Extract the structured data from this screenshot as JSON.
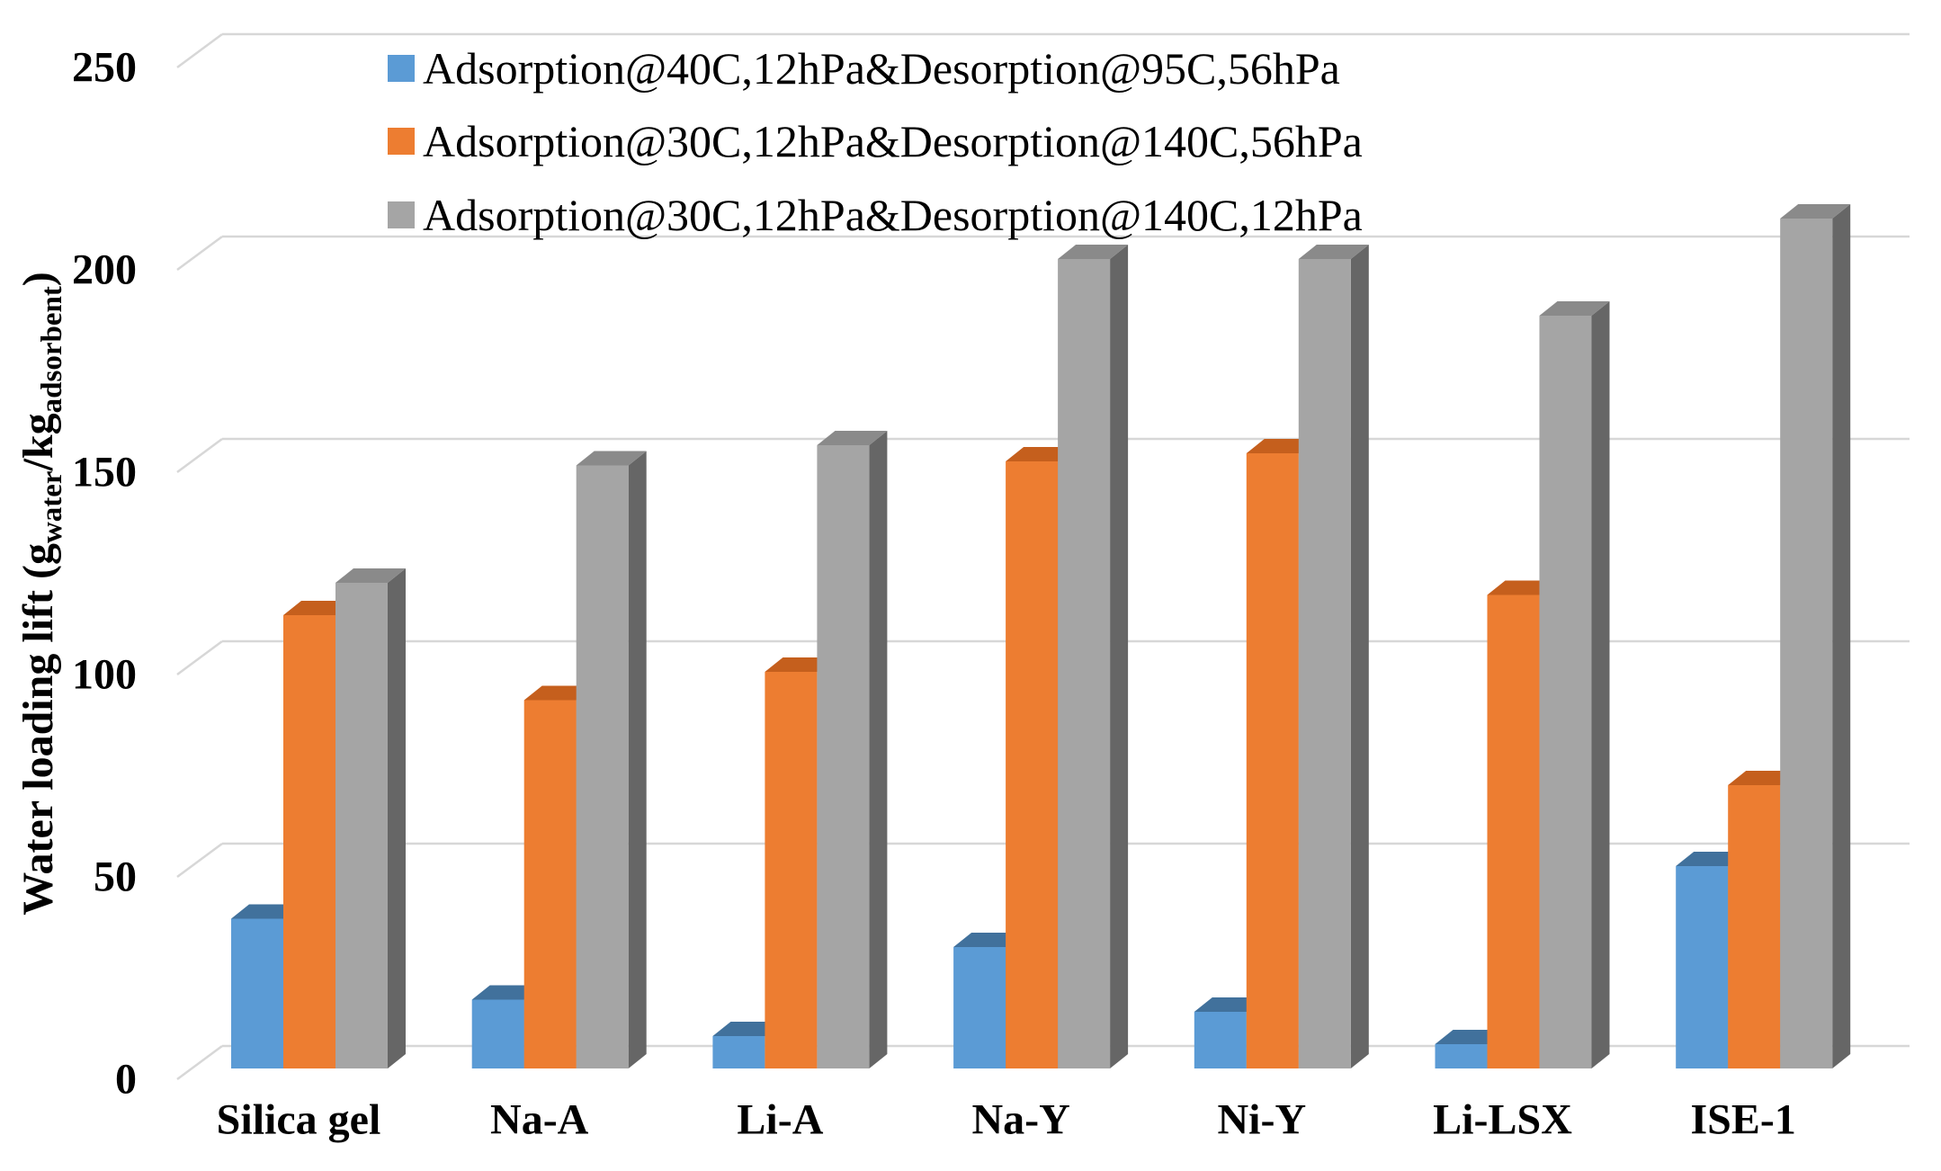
{
  "chart_data": {
    "type": "bar",
    "style": "3d-oblique-column",
    "title": "",
    "categories": [
      "Silica gel",
      "Na-A",
      "Li-A",
      "Na-Y",
      "Ni-Y",
      "Li-LSX",
      "ISE-1"
    ],
    "series": [
      {
        "name": "Adsorption@40C,12hPa&Desorption@95C,56hPa",
        "values": [
          37,
          17,
          8,
          30,
          14,
          6,
          50
        ],
        "colors": {
          "front": "#5B9BD5",
          "top": "#41719C",
          "side": "#3A6591"
        }
      },
      {
        "name": "Adsorption@30C,12hPa&Desorption@140C,56hPa",
        "values": [
          112,
          91,
          98,
          150,
          152,
          117,
          70
        ],
        "colors": {
          "front": "#ED7D31",
          "top": "#C55F1D",
          "side": "#AE5517"
        }
      },
      {
        "name": "Adsorption@30C,12hPa&Desorption@140C,12hPa",
        "values": [
          120,
          149,
          154,
          200,
          200,
          186,
          210
        ],
        "colors": {
          "front": "#A5A5A5",
          "top": "#8A8A8A",
          "side": "#666666"
        }
      }
    ],
    "ylabel_parts": [
      {
        "t": "Water loading lift (g",
        "sub": false
      },
      {
        "t": "water",
        "sub": true
      },
      {
        "t": "/kg",
        "sub": false
      },
      {
        "t": "adsorbent",
        "sub": true
      },
      {
        "t": ")",
        "sub": false
      }
    ],
    "yticks": [
      0,
      50,
      100,
      150,
      200,
      250
    ],
    "ylim": [
      0,
      250
    ],
    "grid": true,
    "gridline_color": "#D7D7D7",
    "text_color": "#000000",
    "legend_position": "top-inside",
    "legend": [
      "Adsorption@40C,12hPa&Desorption@95C,56hPa",
      "Adsorption@30C,12hPa&Desorption@140C,56hPa",
      "Adsorption@30C,12hPa&Desorption@140C,12hPa"
    ]
  }
}
